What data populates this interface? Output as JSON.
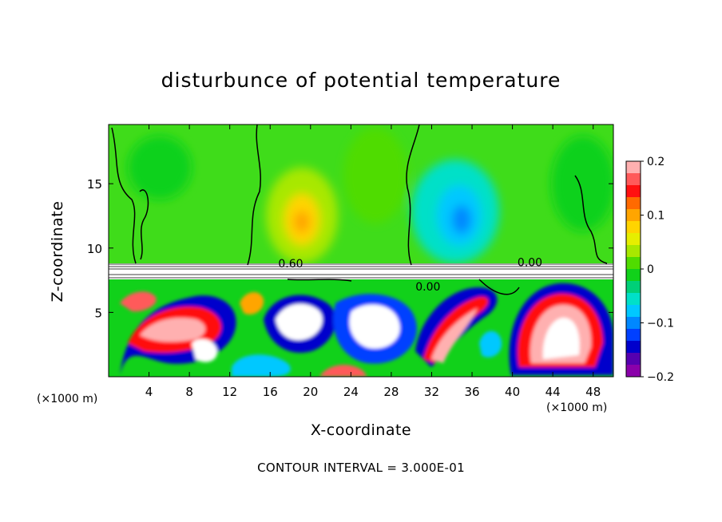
{
  "chart_data": {
    "type": "heatmap",
    "title": "disturbunce of potential temperature",
    "xlabel": "X-coordinate",
    "ylabel": "Z-coordinate",
    "x_unit_label": "(×1000 m)",
    "x_unit_label_right": "(×1000 m)",
    "footer": "CONTOUR INTERVAL = 3.000E-01",
    "xlim": [
      0,
      50
    ],
    "ylim": [
      0,
      19.6
    ],
    "x_ticks": [
      4,
      8,
      12,
      16,
      20,
      24,
      28,
      32,
      36,
      40,
      44,
      48
    ],
    "x_tick_labels": [
      "4",
      "8",
      "12",
      "16",
      "20",
      "24",
      "28",
      "32",
      "36",
      "40",
      "44",
      "48"
    ],
    "y_ticks": [
      5,
      10,
      15
    ],
    "y_tick_labels": [
      "5",
      "10",
      "15"
    ],
    "colorbar": {
      "range": [
        -0.2,
        0.2
      ],
      "ticks": [
        0.2,
        0.1,
        0,
        -0.1,
        -0.2
      ],
      "tick_labels": [
        "0.2",
        "0.1",
        "0",
        "−0.1",
        "−0.2"
      ],
      "colors": [
        "#ffb0b0",
        "#ff5a5a",
        "#ff1010",
        "#ff6a00",
        "#ffa500",
        "#ffd400",
        "#e6ee00",
        "#a8e800",
        "#50dc00",
        "#11d11a",
        "#00d078",
        "#00e0c8",
        "#00c8ff",
        "#0088ff",
        "#0040ff",
        "#0000cc",
        "#5500b0",
        "#8a00aa"
      ]
    },
    "contour_labels": [
      {
        "text": "0.60",
        "x": 16.8,
        "z": 8.8
      },
      {
        "text": "0.00",
        "x": 40.5,
        "z": 8.9
      },
      {
        "text": "0.00",
        "x": 30.4,
        "z": 7.0
      }
    ],
    "field": {
      "stable_layer_z": [
        8.0,
        9.0
      ],
      "anomalies_upper": [
        {
          "x": 19,
          "z": 12.5,
          "value": 0.12
        },
        {
          "x": 35,
          "z": 12.0,
          "value": -0.1
        }
      ]
    }
  }
}
